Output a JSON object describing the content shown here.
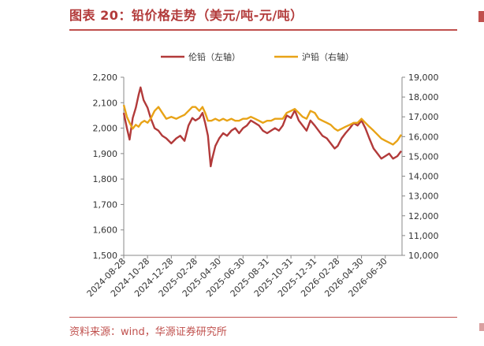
{
  "header": {
    "title": "图表 20：铅价格走势（美元/吨-元/吨）"
  },
  "footer": {
    "source": "资料来源：wind，华源证券研究所"
  },
  "colors": {
    "lme": "#b23a3a",
    "shfe": "#e8a317",
    "accent": "#c0504d"
  },
  "chart_data": {
    "type": "line",
    "legend_placement": "top-center",
    "grid": false,
    "x_ticks": [
      "2024-08-28",
      "2024-10-28",
      "2024-12-28",
      "2025-02-28",
      "2025-04-30",
      "2025-06-30",
      "2025-08-31",
      "2025-10-31",
      "2025-12-31",
      "2026-02-28",
      "2026-04-30",
      "2026-06-30"
    ],
    "y_left": {
      "min": 1500,
      "max": 2200,
      "ticks": [
        "1,500",
        "1,600",
        "1,700",
        "1,800",
        "1,900",
        "2,000",
        "2,100",
        "2,200"
      ]
    },
    "y_right": {
      "min": 10000,
      "max": 19000,
      "ticks": [
        "10,000",
        "11,000",
        "12,000",
        "13,000",
        "14,000",
        "15,000",
        "16,000",
        "17,000",
        "18,000",
        "19,000"
      ]
    },
    "series": [
      {
        "name": "伦铅（左轴）",
        "axis": "left",
        "points": [
          [
            "2024-08-28",
            2060
          ],
          [
            "2024-09-05",
            2000
          ],
          [
            "2024-09-12",
            1955
          ],
          [
            "2024-09-20",
            2040
          ],
          [
            "2024-09-28",
            2080
          ],
          [
            "2024-10-05",
            2130
          ],
          [
            "2024-10-10",
            2160
          ],
          [
            "2024-10-18",
            2110
          ],
          [
            "2024-10-28",
            2080
          ],
          [
            "2024-11-05",
            2040
          ],
          [
            "2024-11-15",
            2000
          ],
          [
            "2024-11-25",
            1990
          ],
          [
            "2024-12-05",
            1970
          ],
          [
            "2024-12-15",
            1960
          ],
          [
            "2024-12-28",
            1940
          ],
          [
            "2025-01-10",
            1960
          ],
          [
            "2025-01-20",
            1970
          ],
          [
            "2025-01-31",
            1950
          ],
          [
            "2025-02-10",
            2010
          ],
          [
            "2025-02-20",
            2040
          ],
          [
            "2025-02-28",
            2030
          ],
          [
            "2025-03-10",
            2040
          ],
          [
            "2025-03-18",
            2060
          ],
          [
            "2025-03-25",
            2020
          ],
          [
            "2025-04-01",
            1970
          ],
          [
            "2025-04-08",
            1850
          ],
          [
            "2025-04-12",
            1880
          ],
          [
            "2025-04-20",
            1930
          ],
          [
            "2025-04-30",
            1960
          ],
          [
            "2025-05-10",
            1980
          ],
          [
            "2025-05-20",
            1970
          ],
          [
            "2025-05-31",
            1990
          ],
          [
            "2025-06-10",
            2000
          ],
          [
            "2025-06-20",
            1980
          ],
          [
            "2025-06-30",
            2000
          ],
          [
            "2025-07-10",
            2010
          ],
          [
            "2025-07-20",
            2030
          ],
          [
            "2025-07-31",
            2020
          ],
          [
            "2025-08-10",
            2010
          ],
          [
            "2025-08-20",
            1990
          ],
          [
            "2025-08-31",
            1980
          ],
          [
            "2025-09-10",
            1990
          ],
          [
            "2025-09-20",
            2000
          ],
          [
            "2025-09-30",
            1990
          ],
          [
            "2025-10-10",
            2010
          ],
          [
            "2025-10-20",
            2050
          ],
          [
            "2025-10-31",
            2040
          ],
          [
            "2025-11-10",
            2070
          ],
          [
            "2025-11-20",
            2030
          ],
          [
            "2025-11-30",
            2010
          ],
          [
            "2025-12-10",
            1990
          ],
          [
            "2025-12-20",
            2030
          ],
          [
            "2025-12-31",
            2010
          ],
          [
            "2026-01-10",
            1990
          ],
          [
            "2026-01-20",
            1970
          ],
          [
            "2026-01-31",
            1960
          ],
          [
            "2026-02-10",
            1940
          ],
          [
            "2026-02-20",
            1920
          ],
          [
            "2026-02-28",
            1930
          ],
          [
            "2026-03-10",
            1960
          ],
          [
            "2026-03-20",
            1980
          ],
          [
            "2026-03-31",
            2000
          ],
          [
            "2026-04-10",
            2020
          ],
          [
            "2026-04-20",
            2010
          ],
          [
            "2026-04-30",
            2030
          ],
          [
            "2026-05-10",
            2000
          ],
          [
            "2026-05-20",
            1960
          ],
          [
            "2026-05-31",
            1920
          ],
          [
            "2026-06-10",
            1900
          ],
          [
            "2026-06-20",
            1880
          ],
          [
            "2026-06-30",
            1890
          ],
          [
            "2026-07-10",
            1900
          ],
          [
            "2026-07-20",
            1880
          ],
          [
            "2026-07-31",
            1890
          ],
          [
            "2026-08-10",
            1910
          ]
        ]
      },
      {
        "name": "沪铅（右轴）",
        "axis": "right",
        "points": [
          [
            "2024-08-28",
            17600
          ],
          [
            "2024-09-05",
            17000
          ],
          [
            "2024-09-12",
            16700
          ],
          [
            "2024-09-20",
            16400
          ],
          [
            "2024-09-28",
            16600
          ],
          [
            "2024-10-05",
            16500
          ],
          [
            "2024-10-12",
            16700
          ],
          [
            "2024-10-20",
            16800
          ],
          [
            "2024-10-28",
            16700
          ],
          [
            "2024-11-05",
            16900
          ],
          [
            "2024-11-15",
            17300
          ],
          [
            "2024-11-25",
            17500
          ],
          [
            "2024-12-05",
            17200
          ],
          [
            "2024-12-15",
            16900
          ],
          [
            "2024-12-28",
            17000
          ],
          [
            "2025-01-10",
            16900
          ],
          [
            "2025-01-20",
            17000
          ],
          [
            "2025-01-31",
            17100
          ],
          [
            "2025-02-10",
            17300
          ],
          [
            "2025-02-20",
            17500
          ],
          [
            "2025-02-28",
            17500
          ],
          [
            "2025-03-10",
            17300
          ],
          [
            "2025-03-18",
            17500
          ],
          [
            "2025-03-25",
            17200
          ],
          [
            "2025-04-01",
            16800
          ],
          [
            "2025-04-10",
            16800
          ],
          [
            "2025-04-20",
            16900
          ],
          [
            "2025-04-30",
            16800
          ],
          [
            "2025-05-10",
            16900
          ],
          [
            "2025-05-20",
            16800
          ],
          [
            "2025-05-31",
            16900
          ],
          [
            "2025-06-10",
            16800
          ],
          [
            "2025-06-20",
            16800
          ],
          [
            "2025-06-30",
            16900
          ],
          [
            "2025-07-10",
            16900
          ],
          [
            "2025-07-20",
            17000
          ],
          [
            "2025-07-31",
            16900
          ],
          [
            "2025-08-10",
            16800
          ],
          [
            "2025-08-20",
            16700
          ],
          [
            "2025-08-31",
            16800
          ],
          [
            "2025-09-10",
            16800
          ],
          [
            "2025-09-20",
            16900
          ],
          [
            "2025-09-30",
            16900
          ],
          [
            "2025-10-10",
            16900
          ],
          [
            "2025-10-20",
            17200
          ],
          [
            "2025-10-31",
            17300
          ],
          [
            "2025-11-10",
            17400
          ],
          [
            "2025-11-20",
            17200
          ],
          [
            "2025-11-30",
            17000
          ],
          [
            "2025-12-10",
            16900
          ],
          [
            "2025-12-20",
            17300
          ],
          [
            "2025-12-31",
            17200
          ],
          [
            "2026-01-10",
            16900
          ],
          [
            "2026-01-20",
            16800
          ],
          [
            "2026-01-31",
            16700
          ],
          [
            "2026-02-10",
            16600
          ],
          [
            "2026-02-20",
            16400
          ],
          [
            "2026-02-28",
            16300
          ],
          [
            "2026-03-10",
            16400
          ],
          [
            "2026-03-20",
            16500
          ],
          [
            "2026-03-31",
            16600
          ],
          [
            "2026-04-10",
            16700
          ],
          [
            "2026-04-20",
            16700
          ],
          [
            "2026-04-30",
            16900
          ],
          [
            "2026-05-10",
            16700
          ],
          [
            "2026-05-20",
            16500
          ],
          [
            "2026-05-31",
            16300
          ],
          [
            "2026-06-10",
            16100
          ],
          [
            "2026-06-20",
            15900
          ],
          [
            "2026-06-30",
            15800
          ],
          [
            "2026-07-10",
            15700
          ],
          [
            "2026-07-20",
            15600
          ],
          [
            "2026-07-31",
            15800
          ],
          [
            "2026-08-10",
            16100
          ]
        ]
      }
    ]
  }
}
